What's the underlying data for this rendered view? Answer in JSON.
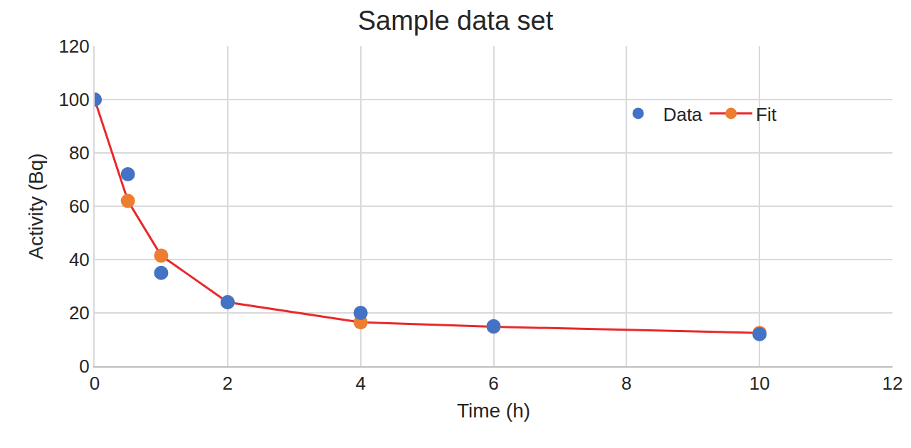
{
  "chart_data": {
    "type": "scatter",
    "title": "Sample data set",
    "x_label": "Time (h)",
    "y_label": "Activity (Bq)",
    "x": [
      0,
      0.5,
      1,
      2,
      4,
      6,
      10
    ],
    "series": [
      {
        "name": "Data",
        "type": "scatter",
        "marker": "circle",
        "color": "#4472c4",
        "values": [
          100,
          72,
          35,
          24,
          20,
          15,
          12
        ]
      },
      {
        "name": "Fit",
        "type": "line",
        "marker": "circle",
        "line_style": "solid",
        "color": "#ed7d31",
        "values": [
          100,
          62,
          41.5,
          24,
          16.5,
          14.8,
          12.5
        ]
      }
    ],
    "xlim": [
      0,
      12
    ],
    "xticks": [
      0,
      2,
      4,
      6,
      8,
      10,
      12
    ],
    "ylim": [
      0,
      120
    ],
    "yticks": [
      0,
      20,
      40,
      60,
      80,
      100,
      120
    ],
    "grid": true,
    "legend": "upper right"
  }
}
